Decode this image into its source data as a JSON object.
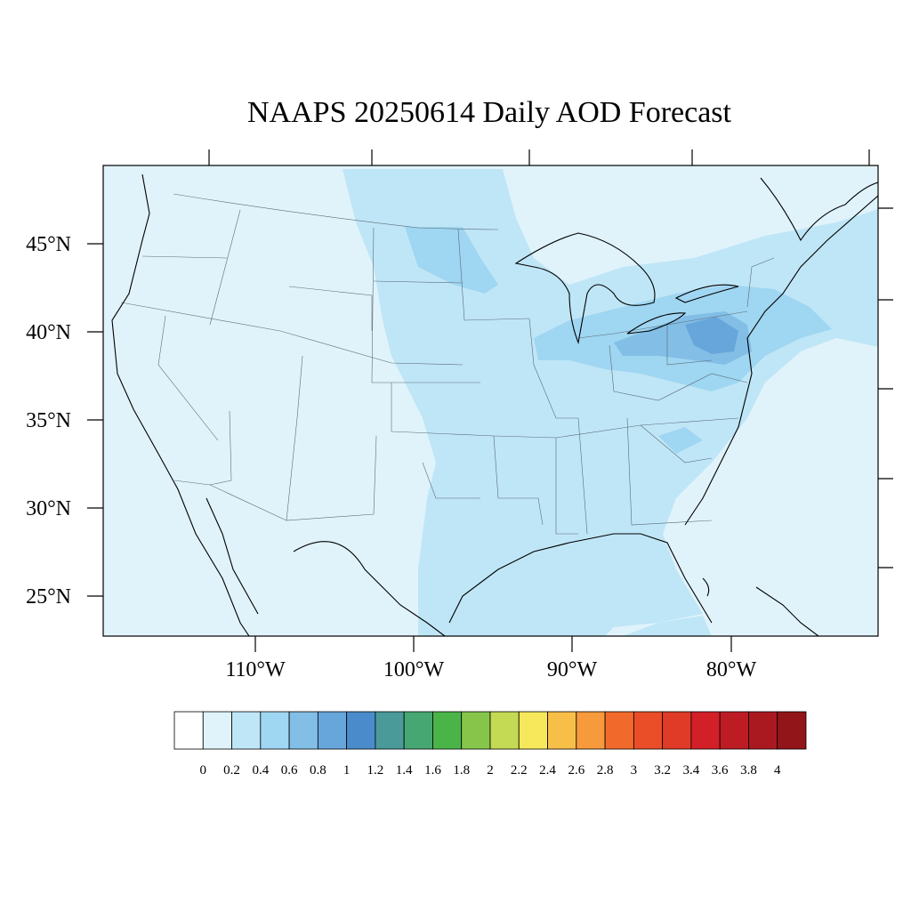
{
  "title": "NAAPS 20250614 Daily AOD Forecast",
  "map": {
    "lat_labels": [
      "45°N",
      "40°N",
      "35°N",
      "30°N",
      "25°N"
    ],
    "lon_labels": [
      "110°W",
      "100°W",
      "90°W",
      "80°W"
    ],
    "background_class_color": "#e0f3fb"
  },
  "colorbar": {
    "labels": [
      "0",
      "0.2",
      "0.4",
      "0.6",
      "0.8",
      "1",
      "1.2",
      "1.4",
      "1.6",
      "1.8",
      "2",
      "2.2",
      "2.4",
      "2.6",
      "2.8",
      "3",
      "3.2",
      "3.4",
      "3.6",
      "3.8",
      "4"
    ],
    "colors": [
      "#ffffff",
      "#e0f3fb",
      "#bfe6f7",
      "#9fd6f2",
      "#82bee6",
      "#67a6db",
      "#4a8ccb",
      "#4a9a9a",
      "#46a773",
      "#4bb449",
      "#86c54a",
      "#c4d954",
      "#f6e85a",
      "#f8bf48",
      "#f69a3c",
      "#f26a2b",
      "#ea4e28",
      "#df3b27",
      "#d21f28",
      "#be1c25",
      "#ab1920",
      "#921519"
    ]
  }
}
